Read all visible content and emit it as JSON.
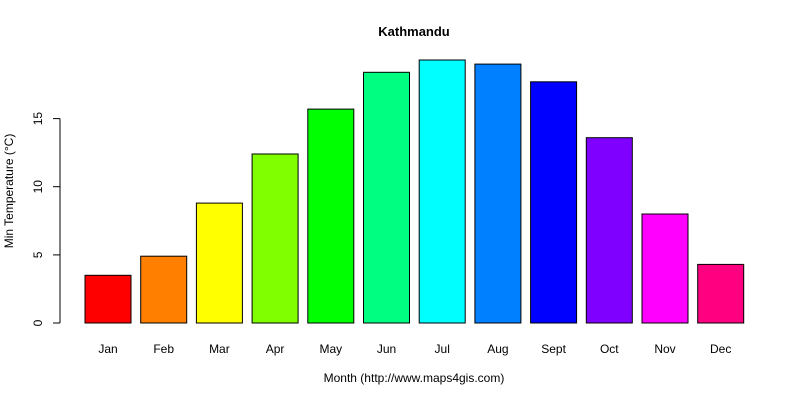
{
  "chart_data": {
    "type": "bar",
    "title": "Kathmandu",
    "xlabel": "Month (http://www.maps4gis.com)",
    "ylabel": "Min Temperature (°C)",
    "categories": [
      "Jan",
      "Feb",
      "Mar",
      "Apr",
      "May",
      "Jun",
      "Jul",
      "Aug",
      "Sept",
      "Oct",
      "Nov",
      "Dec"
    ],
    "values": [
      3.5,
      4.9,
      8.8,
      12.4,
      15.7,
      18.4,
      19.3,
      19.0,
      17.7,
      13.6,
      8.0,
      4.3
    ],
    "colors": [
      "#FF0000",
      "#FF8000",
      "#FFFF00",
      "#80FF00",
      "#00FF00",
      "#00FF80",
      "#00FFFF",
      "#0080FF",
      "#0000FF",
      "#8000FF",
      "#FF00FF",
      "#FF0080"
    ],
    "yticks": [
      0,
      5,
      10,
      15
    ],
    "ylim": [
      0,
      19.3
    ],
    "grid": false,
    "legend": "none"
  }
}
